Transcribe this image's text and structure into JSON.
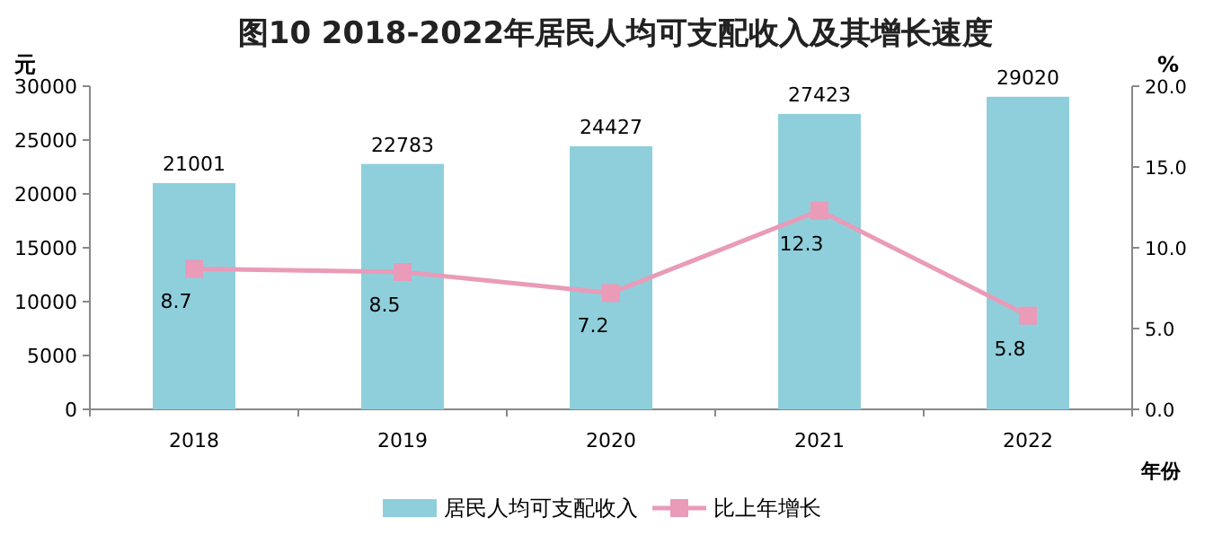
{
  "chart_data": {
    "type": "bar",
    "title": "图10   2018-2022年居民人均可支配收入及其增长速度",
    "ylabel": "元",
    "y2label": "%",
    "xlabel": "年份",
    "categories": [
      "2018",
      "2019",
      "2020",
      "2021",
      "2022"
    ],
    "series": [
      {
        "name": "居民人均可支配收入",
        "color": "#8fcfdc",
        "values": [
          21001,
          22783,
          24427,
          27423,
          29020
        ]
      },
      {
        "name": "比上年增长",
        "type": "line",
        "axis": "y2",
        "marker": "square",
        "color": "#e99bb8",
        "values": [
          8.7,
          8.5,
          7.2,
          12.3,
          5.8
        ]
      }
    ],
    "ylim": [
      0,
      30000
    ],
    "yticks": [
      0,
      5000,
      10000,
      15000,
      20000,
      25000,
      30000
    ],
    "y2lim": [
      0,
      20
    ],
    "y2ticks": [
      {
        "value": 0,
        "label": "0.0"
      },
      {
        "value": 5,
        "label": "5.0"
      },
      {
        "value": 10,
        "label": "10.0"
      },
      {
        "value": 15,
        "label": "15.0"
      },
      {
        "value": 20,
        "label": "20.0"
      }
    ],
    "data_labels": true,
    "legend": "bottom"
  }
}
